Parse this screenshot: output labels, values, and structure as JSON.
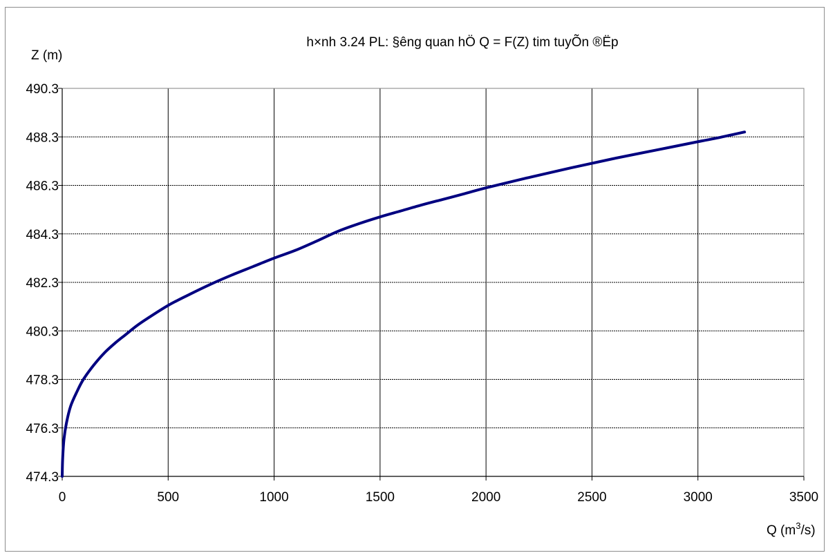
{
  "chart_data": {
    "type": "line",
    "title": "h×nh 3.24 PL: §­êng quan hÖ Q = F(Z) tim tuyÕn ®Ëp",
    "xlabel": "Q (m",
    "xlabel_sup": "3",
    "xlabel_tail": "/s)",
    "ylabel": "Z (m)",
    "xlim": [
      0,
      3500
    ],
    "ylim": [
      474.3,
      490.3
    ],
    "x_ticks": [
      0,
      500,
      1000,
      1500,
      2000,
      2500,
      3000,
      3500
    ],
    "y_ticks": [
      474.3,
      476.3,
      478.3,
      480.3,
      482.3,
      484.3,
      486.3,
      488.3,
      490.3
    ],
    "x_tick_labels": [
      "0",
      "500",
      "1000",
      "1500",
      "2000",
      "2500",
      "3000",
      "3500"
    ],
    "y_tick_labels": [
      "474.3",
      "476.3",
      "478.3",
      "480.3",
      "482.3",
      "484.3",
      "486.3",
      "488.3",
      "490.3"
    ],
    "grid": true,
    "series": [
      {
        "color": "#000080",
        "points": [
          [
            0,
            474.3
          ],
          [
            2,
            475.0
          ],
          [
            8,
            475.8
          ],
          [
            20,
            476.5
          ],
          [
            40,
            477.2
          ],
          [
            70,
            477.8
          ],
          [
            100,
            478.3
          ],
          [
            150,
            478.9
          ],
          [
            200,
            479.4
          ],
          [
            250,
            479.8
          ],
          [
            300,
            480.15
          ],
          [
            350,
            480.5
          ],
          [
            400,
            480.8
          ],
          [
            500,
            481.35
          ],
          [
            600,
            481.8
          ],
          [
            700,
            482.22
          ],
          [
            800,
            482.6
          ],
          [
            900,
            482.95
          ],
          [
            1000,
            483.3
          ],
          [
            1100,
            483.62
          ],
          [
            1200,
            484.0
          ],
          [
            1300,
            484.4
          ],
          [
            1400,
            484.72
          ],
          [
            1500,
            485.0
          ],
          [
            1600,
            485.25
          ],
          [
            1700,
            485.5
          ],
          [
            1800,
            485.73
          ],
          [
            1900,
            485.96
          ],
          [
            2000,
            486.2
          ],
          [
            2200,
            486.62
          ],
          [
            2400,
            487.02
          ],
          [
            2600,
            487.4
          ],
          [
            2800,
            487.75
          ],
          [
            3000,
            488.1
          ],
          [
            3100,
            488.27
          ],
          [
            3220,
            488.5
          ]
        ]
      }
    ]
  }
}
